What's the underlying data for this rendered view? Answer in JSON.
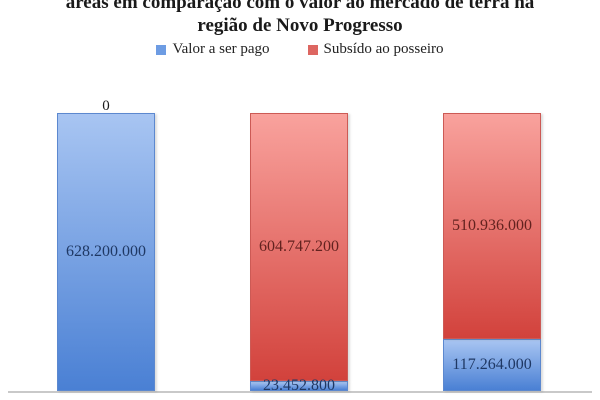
{
  "title": {
    "line1": "áreas em comparação com o valor ao mercado de terra na",
    "line2": "região de Novo Progresso"
  },
  "legend": [
    {
      "label": "Valor a ser pago",
      "color": "#6d9ce3"
    },
    {
      "label": "Subsído ao posseiro",
      "color": "#dd6661"
    }
  ],
  "chart_data": {
    "type": "bar",
    "subtype": "stacked-vertical",
    "title": "áreas em comparação com o valor ao mercado de terra na região de Novo Progresso",
    "categories": [
      "",
      "",
      ""
    ],
    "series": [
      {
        "name": "Valor a ser pago",
        "values": [
          628200000,
          23452800,
          117264000
        ],
        "labels": [
          "628.200.000",
          "23.452.800",
          "117.264.000"
        ],
        "color_top": "#a8c5f2",
        "color_bottom": "#4a80d4",
        "border_color": "#5c88cf",
        "label_color": "#1f3864"
      },
      {
        "name": "Subsído ao posseiro",
        "values": [
          0,
          604747200,
          510936000
        ],
        "labels": [
          "0",
          "604.747.200",
          "510.936.000"
        ],
        "color_top": "#f9a29d",
        "color_bottom": "#d2423c",
        "border_color": "#cc5a55",
        "label_color": "#63221f",
        "zero_label_color": "#1a1a1a"
      }
    ],
    "ylim": [
      0,
      628200000
    ],
    "grid": false,
    "legend_position": "top",
    "axis_line_color": "#c9c9c9",
    "background": "#ffffff"
  }
}
